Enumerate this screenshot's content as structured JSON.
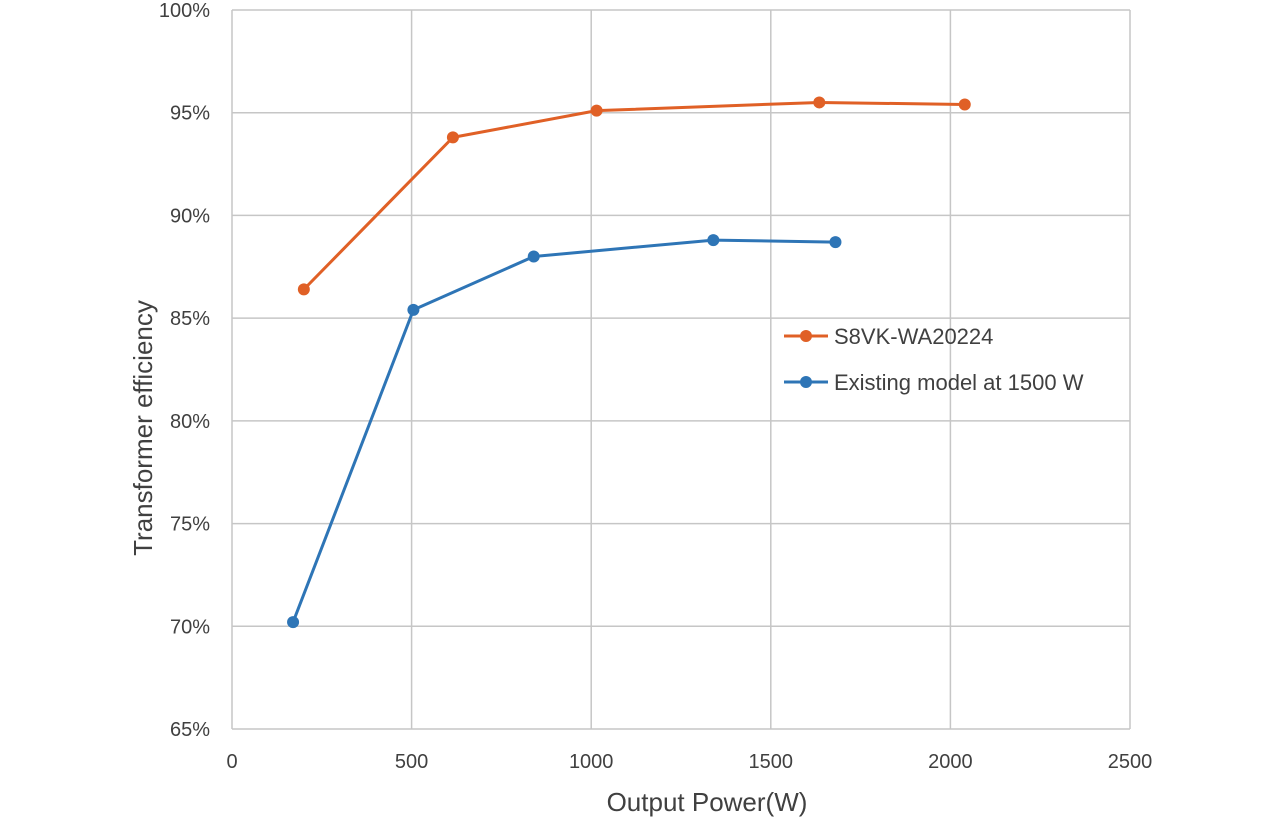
{
  "chart_data": {
    "type": "line",
    "title": "",
    "xlabel": "Output Power(W)",
    "ylabel": "Transformer efficiency",
    "xlim": [
      0,
      2500
    ],
    "ylim": [
      65,
      100
    ],
    "x_ticks": [
      0,
      500,
      1000,
      1500,
      2000,
      2500
    ],
    "y_ticks": [
      65,
      70,
      75,
      80,
      85,
      90,
      95,
      100
    ],
    "x_tick_labels": [
      "0",
      "500",
      "1000",
      "1500",
      "2000",
      "2500"
    ],
    "y_tick_labels": [
      "65%",
      "70%",
      "75%",
      "80%",
      "85%",
      "90%",
      "95%",
      "100%"
    ],
    "grid": true,
    "legend_position": "right-center",
    "series": [
      {
        "name": "S8VK-WA20224",
        "color": "#E06026",
        "x": [
          200,
          615,
          1015,
          1635,
          2040
        ],
        "y": [
          86.4,
          93.8,
          95.1,
          95.5,
          95.4
        ]
      },
      {
        "name": "Existing model at 1500 W",
        "color": "#2E75B6",
        "x": [
          170,
          505,
          840,
          1340,
          1680
        ],
        "y": [
          70.2,
          85.4,
          88.0,
          88.8,
          88.7
        ]
      }
    ]
  }
}
